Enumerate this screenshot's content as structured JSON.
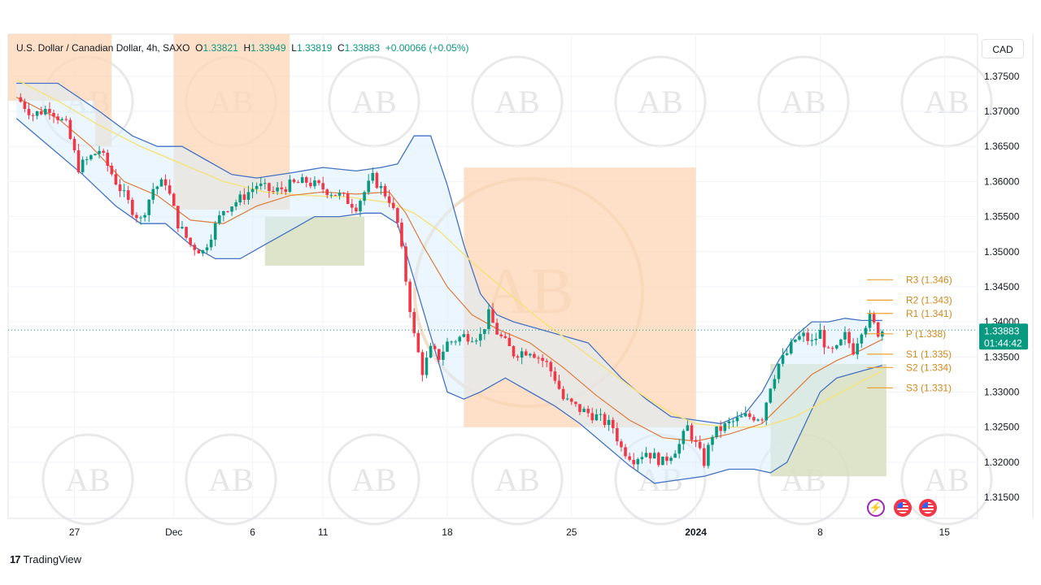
{
  "header": {
    "symbol": "U.S. Dollar / Canadian Dollar, 4h, SAXO",
    "o_label": "O",
    "o_value": "1.33821",
    "h_label": "H",
    "h_value": "1.33949",
    "l_label": "L",
    "l_value": "1.33819",
    "c_label": "C",
    "c_value": "1.33883",
    "change": "+0.00066 (+0.05%)"
  },
  "currency_button": "CAD",
  "brand": {
    "logo": "17",
    "name": "TradingView"
  },
  "watermark_text": "AB",
  "price_tag": {
    "price": "1.33883",
    "countdown": "01:44:42"
  },
  "events": {
    "lightning_icon": "lightning-icon",
    "flag_icon": "us-flag-icon"
  },
  "colors": {
    "up": "#089981",
    "down": "#f23645",
    "bollinger": "#4472c4",
    "ema_fast": "#e07b39",
    "ema_slow": "#f5e27a",
    "supply": "#fcd5b4",
    "demand": "#d8dfbf",
    "pivot": "#f0a030"
  },
  "chart_data": {
    "type": "candlestick",
    "timeframe": "4h",
    "ylim": [
      1.312,
      1.381
    ],
    "y_ticks": [
      "1.37500",
      "1.37000",
      "1.36500",
      "1.36000",
      "1.35500",
      "1.35000",
      "1.34500",
      "1.34000",
      "1.33500",
      "1.33000",
      "1.32500",
      "1.32000",
      "1.31500"
    ],
    "x_ticks": [
      {
        "label": "27",
        "i": 14
      },
      {
        "label": "Dec",
        "i": 38
      },
      {
        "label": "6",
        "i": 57
      },
      {
        "label": "11",
        "i": 74
      },
      {
        "label": "18",
        "i": 104
      },
      {
        "label": "25",
        "i": 134
      },
      {
        "label": "2024",
        "i": 164
      },
      {
        "label": "8",
        "i": 194
      },
      {
        "label": "15",
        "i": 224
      }
    ],
    "last_index": 209,
    "x_range": [
      -2,
      232
    ],
    "close_path": [
      [
        0,
        1.372
      ],
      [
        4,
        1.3695
      ],
      [
        8,
        1.3705
      ],
      [
        12,
        1.368
      ],
      [
        15,
        1.362
      ],
      [
        20,
        1.3645
      ],
      [
        24,
        1.36
      ],
      [
        28,
        1.356
      ],
      [
        30,
        1.3545
      ],
      [
        33,
        1.359
      ],
      [
        36,
        1.36
      ],
      [
        39,
        1.354
      ],
      [
        42,
        1.351
      ],
      [
        45,
        1.35
      ],
      [
        47,
        1.3525
      ],
      [
        50,
        1.356
      ],
      [
        54,
        1.3575
      ],
      [
        58,
        1.3595
      ],
      [
        62,
        1.3585
      ],
      [
        66,
        1.3595
      ],
      [
        70,
        1.36
      ],
      [
        74,
        1.359
      ],
      [
        78,
        1.358
      ],
      [
        82,
        1.3565
      ],
      [
        86,
        1.3605
      ],
      [
        90,
        1.3575
      ],
      [
        92,
        1.354
      ],
      [
        94,
        1.346
      ],
      [
        96,
        1.338
      ],
      [
        98,
        1.333
      ],
      [
        100,
        1.336
      ],
      [
        102,
        1.335
      ],
      [
        104,
        1.337
      ],
      [
        108,
        1.338
      ],
      [
        112,
        1.338
      ],
      [
        114,
        1.341
      ],
      [
        116,
        1.3385
      ],
      [
        118,
        1.337
      ],
      [
        120,
        1.3355
      ],
      [
        124,
        1.336
      ],
      [
        128,
        1.334
      ],
      [
        130,
        1.332
      ],
      [
        132,
        1.329
      ],
      [
        136,
        1.3275
      ],
      [
        140,
        1.3265
      ],
      [
        144,
        1.325
      ],
      [
        146,
        1.322
      ],
      [
        149,
        1.3205
      ],
      [
        152,
        1.3215
      ],
      [
        156,
        1.32
      ],
      [
        160,
        1.3225
      ],
      [
        162,
        1.325
      ],
      [
        164,
        1.3225
      ],
      [
        166,
        1.32
      ],
      [
        168,
        1.324
      ],
      [
        172,
        1.3255
      ],
      [
        176,
        1.3265
      ],
      [
        180,
        1.3265
      ],
      [
        182,
        1.331
      ],
      [
        184,
        1.334
      ],
      [
        186,
        1.3355
      ],
      [
        188,
        1.3375
      ],
      [
        190,
        1.338
      ],
      [
        192,
        1.337
      ],
      [
        194,
        1.3385
      ],
      [
        196,
        1.3355
      ],
      [
        198,
        1.336
      ],
      [
        200,
        1.338
      ],
      [
        202,
        1.336
      ],
      [
        204,
        1.339
      ],
      [
        206,
        1.3405
      ],
      [
        208,
        1.3385
      ],
      [
        209,
        1.3388
      ]
    ],
    "bollinger": {
      "upper": [
        [
          0,
          1.374
        ],
        [
          10,
          1.374
        ],
        [
          20,
          1.37
        ],
        [
          28,
          1.3665
        ],
        [
          34,
          1.365
        ],
        [
          40,
          1.365
        ],
        [
          46,
          1.363
        ],
        [
          52,
          1.361
        ],
        [
          58,
          1.3605
        ],
        [
          66,
          1.3612
        ],
        [
          74,
          1.362
        ],
        [
          82,
          1.3615
        ],
        [
          88,
          1.362
        ],
        [
          92,
          1.3625
        ],
        [
          96,
          1.3665
        ],
        [
          100,
          1.3665
        ],
        [
          104,
          1.3595
        ],
        [
          108,
          1.351
        ],
        [
          112,
          1.344
        ],
        [
          116,
          1.341
        ],
        [
          120,
          1.34
        ],
        [
          126,
          1.339
        ],
        [
          132,
          1.338
        ],
        [
          138,
          1.337
        ],
        [
          142,
          1.3345
        ],
        [
          146,
          1.332
        ],
        [
          152,
          1.329
        ],
        [
          158,
          1.3265
        ],
        [
          164,
          1.326
        ],
        [
          170,
          1.3255
        ],
        [
          176,
          1.327
        ],
        [
          180,
          1.33
        ],
        [
          184,
          1.3345
        ],
        [
          188,
          1.338
        ],
        [
          192,
          1.34
        ],
        [
          196,
          1.34
        ],
        [
          200,
          1.3405
        ],
        [
          204,
          1.3402
        ],
        [
          209,
          1.3402
        ]
      ],
      "lower": [
        [
          0,
          1.369
        ],
        [
          8,
          1.365
        ],
        [
          16,
          1.361
        ],
        [
          24,
          1.3565
        ],
        [
          30,
          1.354
        ],
        [
          36,
          1.354
        ],
        [
          42,
          1.351
        ],
        [
          48,
          1.349
        ],
        [
          54,
          1.349
        ],
        [
          60,
          1.351
        ],
        [
          66,
          1.353
        ],
        [
          72,
          1.355
        ],
        [
          78,
          1.355
        ],
        [
          84,
          1.3555
        ],
        [
          88,
          1.3555
        ],
        [
          92,
          1.354
        ],
        [
          96,
          1.346
        ],
        [
          100,
          1.338
        ],
        [
          104,
          1.33
        ],
        [
          108,
          1.329
        ],
        [
          112,
          1.33
        ],
        [
          118,
          1.332
        ],
        [
          124,
          1.33
        ],
        [
          130,
          1.328
        ],
        [
          136,
          1.3255
        ],
        [
          142,
          1.3225
        ],
        [
          148,
          1.3195
        ],
        [
          154,
          1.317
        ],
        [
          160,
          1.3175
        ],
        [
          166,
          1.318
        ],
        [
          172,
          1.319
        ],
        [
          178,
          1.319
        ],
        [
          182,
          1.3185
        ],
        [
          186,
          1.32
        ],
        [
          190,
          1.325
        ],
        [
          194,
          1.33
        ],
        [
          198,
          1.332
        ],
        [
          204,
          1.333
        ],
        [
          209,
          1.3338
        ]
      ],
      "middle": [
        [
          0,
          1.3715
        ],
        [
          10,
          1.3695
        ],
        [
          20,
          1.3655
        ],
        [
          28,
          1.361
        ],
        [
          36,
          1.3595
        ],
        [
          44,
          1.3565
        ],
        [
          52,
          1.355
        ],
        [
          60,
          1.3565
        ],
        [
          68,
          1.358
        ],
        [
          76,
          1.3585
        ],
        [
          84,
          1.3585
        ],
        [
          90,
          1.359
        ],
        [
          94,
          1.3575
        ],
        [
          98,
          1.354
        ],
        [
          104,
          1.346
        ],
        [
          110,
          1.34
        ],
        [
          116,
          1.3375
        ],
        [
          124,
          1.336
        ],
        [
          132,
          1.333
        ],
        [
          140,
          1.3295
        ],
        [
          148,
          1.3255
        ],
        [
          156,
          1.322
        ],
        [
          164,
          1.322
        ],
        [
          172,
          1.3225
        ],
        [
          180,
          1.3245
        ],
        [
          186,
          1.3275
        ],
        [
          192,
          1.3325
        ],
        [
          198,
          1.336
        ],
        [
          204,
          1.337
        ],
        [
          209,
          1.3372
        ]
      ]
    },
    "ema_fast": [
      [
        0,
        1.372
      ],
      [
        10,
        1.369
      ],
      [
        18,
        1.365
      ],
      [
        26,
        1.36
      ],
      [
        34,
        1.358
      ],
      [
        42,
        1.3545
      ],
      [
        50,
        1.354
      ],
      [
        58,
        1.3565
      ],
      [
        66,
        1.358
      ],
      [
        74,
        1.3585
      ],
      [
        82,
        1.3582
      ],
      [
        90,
        1.3585
      ],
      [
        94,
        1.3555
      ],
      [
        98,
        1.351
      ],
      [
        104,
        1.345
      ],
      [
        110,
        1.341
      ],
      [
        116,
        1.339
      ],
      [
        124,
        1.337
      ],
      [
        132,
        1.3335
      ],
      [
        140,
        1.3295
      ],
      [
        148,
        1.326
      ],
      [
        156,
        1.3235
      ],
      [
        164,
        1.323
      ],
      [
        172,
        1.324
      ],
      [
        180,
        1.3255
      ],
      [
        186,
        1.329
      ],
      [
        192,
        1.3325
      ],
      [
        198,
        1.3345
      ],
      [
        204,
        1.336
      ],
      [
        209,
        1.3375
      ]
    ],
    "ema_slow": [
      [
        0,
        1.3745
      ],
      [
        10,
        1.3715
      ],
      [
        20,
        1.368
      ],
      [
        30,
        1.365
      ],
      [
        40,
        1.3625
      ],
      [
        50,
        1.36
      ],
      [
        60,
        1.3585
      ],
      [
        70,
        1.358
      ],
      [
        80,
        1.3578
      ],
      [
        90,
        1.357
      ],
      [
        96,
        1.3555
      ],
      [
        102,
        1.353
      ],
      [
        110,
        1.3485
      ],
      [
        118,
        1.3445
      ],
      [
        126,
        1.3405
      ],
      [
        134,
        1.337
      ],
      [
        142,
        1.3335
      ],
      [
        150,
        1.33
      ],
      [
        158,
        1.327
      ],
      [
        164,
        1.3255
      ],
      [
        172,
        1.325
      ],
      [
        180,
        1.325
      ],
      [
        188,
        1.3265
      ],
      [
        196,
        1.329
      ],
      [
        204,
        1.3315
      ],
      [
        209,
        1.333
      ]
    ],
    "zones": [
      {
        "kind": "supply",
        "i0": -2,
        "i1": 19,
        "y0": 1.3715,
        "y1": 1.381
      },
      {
        "kind": "supply",
        "i0": 19,
        "i1": 23,
        "y0": 1.365,
        "y1": 1.381
      },
      {
        "kind": "supply",
        "i0": 38,
        "i1": 66,
        "y0": 1.356,
        "y1": 1.381
      },
      {
        "kind": "supply",
        "i0": 108,
        "i1": 164,
        "y0": 1.325,
        "y1": 1.362
      },
      {
        "kind": "demand",
        "i0": 60,
        "i1": 84,
        "y0": 1.348,
        "y1": 1.355
      },
      {
        "kind": "demand",
        "i0": 182,
        "i1": 210,
        "y0": 1.318,
        "y1": 1.334
      }
    ],
    "pivots": [
      {
        "label": "R3 (1.346)",
        "y": 1.346
      },
      {
        "label": "R2 (1.343)",
        "y": 1.3431
      },
      {
        "label": "R1 (1.341)",
        "y": 1.3412
      },
      {
        "label": "P (1.338)",
        "y": 1.3383
      },
      {
        "label": "S1 (1.335)",
        "y": 1.3354
      },
      {
        "label": "S2 (1.334)",
        "y": 1.3335
      },
      {
        "label": "S3 (1.331)",
        "y": 1.3306
      }
    ],
    "last_price": 1.33883
  }
}
